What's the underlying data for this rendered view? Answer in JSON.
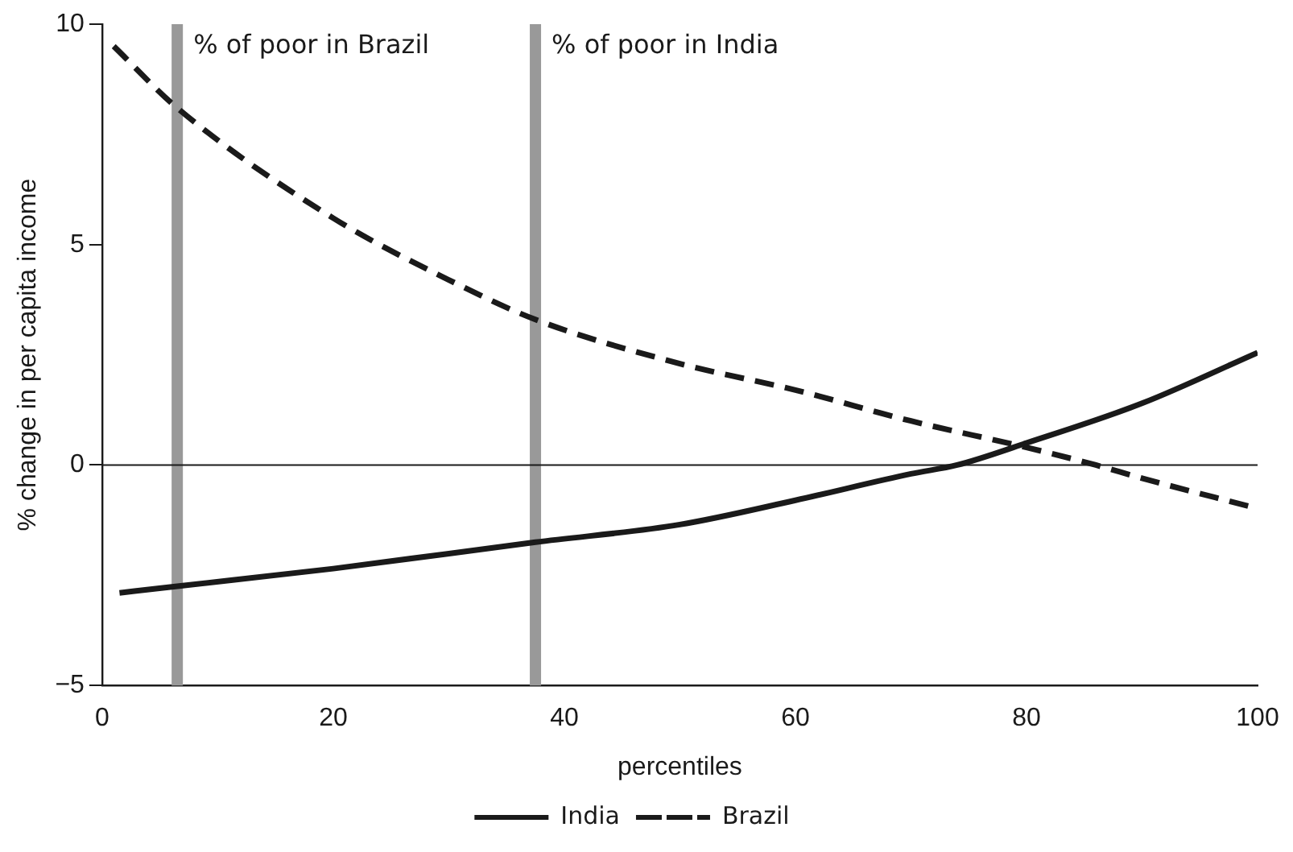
{
  "chart_data": {
    "type": "line",
    "xlabel": "percentiles",
    "ylabel": "% change in per capita income",
    "xlim": [
      0,
      100
    ],
    "xticks": [
      0,
      20,
      40,
      60,
      80,
      100
    ],
    "ylim": [
      -5,
      10
    ],
    "yticks": [
      {
        "value": -5,
        "label": "−5"
      },
      0,
      5,
      10
    ],
    "grid": false,
    "legend": "bottom",
    "marker": "none",
    "series": [
      {
        "name": "India",
        "color": "#1a1a1a",
        "line_style": "solid",
        "x": [
          1.5,
          6.5,
          20,
          37.5,
          50,
          60,
          70,
          74,
          80,
          90,
          100
        ],
        "values": [
          -2.9,
          -2.75,
          -2.35,
          -1.75,
          -1.35,
          -0.8,
          -0.2,
          0,
          0.5,
          1.4,
          2.55
        ]
      },
      {
        "name": "Brazil",
        "color": "#1a1a1a",
        "line_style": "dashed",
        "x": [
          1,
          6.5,
          20,
          30,
          37.5,
          50,
          60,
          70,
          80,
          86,
          90,
          99.5
        ],
        "values": [
          9.5,
          8.1,
          5.6,
          4.2,
          3.3,
          2.3,
          1.7,
          1.0,
          0.4,
          0,
          -0.3,
          -0.95
        ]
      }
    ],
    "ref_lines": [
      {
        "axis": "x",
        "value": 6.5,
        "label": "% of poor in Brazil",
        "color": "#999999"
      },
      {
        "axis": "x",
        "value": 37.5,
        "label": "% of poor in India",
        "color": "#999999"
      },
      {
        "axis": "y",
        "value": 0,
        "color": "#1a1a1a"
      }
    ]
  }
}
